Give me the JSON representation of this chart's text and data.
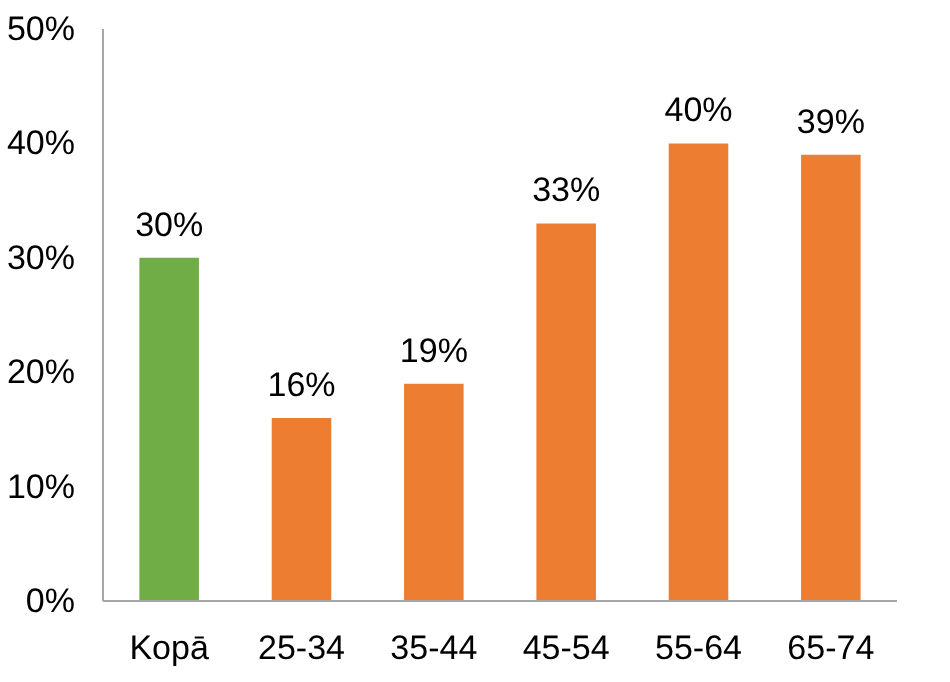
{
  "chart_data": {
    "type": "bar",
    "categories": [
      "Kopā",
      "25-34",
      "35-44",
      "45-54",
      "55-64",
      "65-74"
    ],
    "values": [
      30,
      16,
      19,
      33,
      40,
      39
    ],
    "colors": [
      "#70ad47",
      "#ed7d31",
      "#ed7d31",
      "#ed7d31",
      "#ed7d31",
      "#ed7d31"
    ],
    "value_labels": [
      "30%",
      "16%",
      "19%",
      "33%",
      "40%",
      "39%"
    ],
    "ylim": [
      0,
      50
    ],
    "yticks": [
      {
        "value": 0,
        "label": "0%"
      },
      {
        "value": 10,
        "label": "10%"
      },
      {
        "value": 20,
        "label": "20%"
      },
      {
        "value": 30,
        "label": "30%"
      },
      {
        "value": 40,
        "label": "40%"
      },
      {
        "value": 50,
        "label": "50%"
      }
    ],
    "grid": false
  }
}
